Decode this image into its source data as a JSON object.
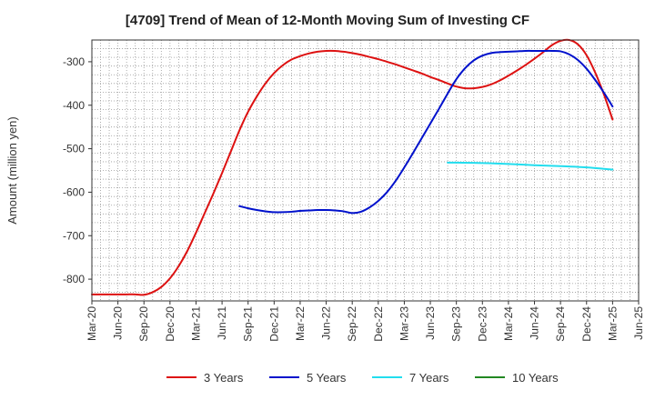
{
  "chart_data": {
    "type": "line",
    "title": "[4709]  Trend of Mean of 12-Month Moving Sum of Investing CF",
    "ylabel": "Amount (million yen)",
    "xlabel": "",
    "ylim": [
      -850,
      -250
    ],
    "yticks": [
      -800,
      -700,
      -600,
      -500,
      -400,
      -300
    ],
    "xlim": [
      "Mar-20",
      "Jun-25"
    ],
    "x_tick_labels": [
      "Mar-20",
      "Jun-20",
      "Sep-20",
      "Dec-20",
      "Mar-21",
      "Jun-21",
      "Sep-21",
      "Dec-21",
      "Mar-22",
      "Jun-22",
      "Sep-22",
      "Dec-22",
      "Mar-23",
      "Jun-23",
      "Sep-23",
      "Dec-23",
      "Mar-24",
      "Jun-24",
      "Sep-24",
      "Dec-24",
      "Mar-25",
      "Jun-25"
    ],
    "grid": true,
    "legend_position": "bottom",
    "series": [
      {
        "name": "3 Years",
        "color": "#dd1111",
        "points": [
          [
            "Mar-20",
            -835
          ],
          [
            "Apr-20",
            -835
          ],
          [
            "May-20",
            -835
          ],
          [
            "Jun-20",
            -835
          ],
          [
            "Jul-20",
            -835
          ],
          [
            "Aug-20",
            -835
          ],
          [
            "Sep-20",
            -836
          ],
          [
            "Oct-20",
            -830
          ],
          [
            "Nov-20",
            -818
          ],
          [
            "Dec-20",
            -798
          ],
          [
            "Jan-21",
            -770
          ],
          [
            "Feb-21",
            -735
          ],
          [
            "Mar-21",
            -693
          ],
          [
            "Apr-21",
            -648
          ],
          [
            "May-21",
            -603
          ],
          [
            "Jun-21",
            -556
          ],
          [
            "Jul-21",
            -507
          ],
          [
            "Aug-21",
            -458
          ],
          [
            "Sep-21",
            -415
          ],
          [
            "Oct-21",
            -380
          ],
          [
            "Nov-21",
            -350
          ],
          [
            "Dec-21",
            -326
          ],
          [
            "Jan-22",
            -308
          ],
          [
            "Feb-22",
            -295
          ],
          [
            "Mar-22",
            -287
          ],
          [
            "Apr-22",
            -281
          ],
          [
            "May-22",
            -277
          ],
          [
            "Jun-22",
            -275
          ],
          [
            "Jul-22",
            -275
          ],
          [
            "Aug-22",
            -277
          ],
          [
            "Sep-22",
            -280
          ],
          [
            "Oct-22",
            -284
          ],
          [
            "Nov-22",
            -289
          ],
          [
            "Dec-22",
            -294
          ],
          [
            "Jan-23",
            -300
          ],
          [
            "Feb-23",
            -306
          ],
          [
            "Mar-23",
            -313
          ],
          [
            "Apr-23",
            -320
          ],
          [
            "May-23",
            -327
          ],
          [
            "Jun-23",
            -335
          ],
          [
            "Jul-23",
            -342
          ],
          [
            "Aug-23",
            -350
          ],
          [
            "Sep-23",
            -357
          ],
          [
            "Oct-23",
            -361
          ],
          [
            "Nov-23",
            -361
          ],
          [
            "Dec-23",
            -358
          ],
          [
            "Jan-24",
            -352
          ],
          [
            "Feb-24",
            -343
          ],
          [
            "Mar-24",
            -332
          ],
          [
            "Apr-24",
            -320
          ],
          [
            "May-24",
            -307
          ],
          [
            "Jun-24",
            -293
          ],
          [
            "Jul-24",
            -278
          ],
          [
            "Aug-24",
            -262
          ],
          [
            "Sep-24",
            -252
          ],
          [
            "Oct-24",
            -250
          ],
          [
            "Nov-24",
            -260
          ],
          [
            "Dec-24",
            -285
          ],
          [
            "Jan-25",
            -325
          ],
          [
            "Feb-25",
            -375
          ],
          [
            "Mar-25",
            -433
          ]
        ]
      },
      {
        "name": "5 Years",
        "color": "#0011cc",
        "points": [
          [
            "Aug-21",
            -632
          ],
          [
            "Sep-21",
            -637
          ],
          [
            "Oct-21",
            -641
          ],
          [
            "Nov-21",
            -644
          ],
          [
            "Dec-21",
            -646
          ],
          [
            "Jan-22",
            -646
          ],
          [
            "Feb-22",
            -645
          ],
          [
            "Mar-22",
            -643
          ],
          [
            "Apr-22",
            -642
          ],
          [
            "May-22",
            -641
          ],
          [
            "Jun-22",
            -641
          ],
          [
            "Jul-22",
            -642
          ],
          [
            "Aug-22",
            -644
          ],
          [
            "Sep-22",
            -648
          ],
          [
            "Oct-22",
            -645
          ],
          [
            "Nov-22",
            -635
          ],
          [
            "Dec-22",
            -620
          ],
          [
            "Jan-23",
            -600
          ],
          [
            "Feb-23",
            -574
          ],
          [
            "Mar-23",
            -543
          ],
          [
            "Apr-23",
            -510
          ],
          [
            "May-23",
            -476
          ],
          [
            "Jun-23",
            -442
          ],
          [
            "Jul-23",
            -408
          ],
          [
            "Aug-23",
            -373
          ],
          [
            "Sep-23",
            -340
          ],
          [
            "Oct-23",
            -315
          ],
          [
            "Nov-23",
            -297
          ],
          [
            "Dec-23",
            -286
          ],
          [
            "Jan-24",
            -280
          ],
          [
            "Feb-24",
            -278
          ],
          [
            "Mar-24",
            -277
          ],
          [
            "Apr-24",
            -276
          ],
          [
            "May-24",
            -275
          ],
          [
            "Jun-24",
            -275
          ],
          [
            "Jul-24",
            -275
          ],
          [
            "Aug-24",
            -275
          ],
          [
            "Sep-24",
            -276
          ],
          [
            "Oct-24",
            -283
          ],
          [
            "Nov-24",
            -296
          ],
          [
            "Dec-24",
            -316
          ],
          [
            "Jan-25",
            -342
          ],
          [
            "Feb-25",
            -371
          ],
          [
            "Mar-25",
            -403
          ]
        ]
      },
      {
        "name": "7 Years",
        "color": "#22ddee",
        "points": [
          [
            "Aug-23",
            -532
          ],
          [
            "Sep-23",
            -532
          ],
          [
            "Dec-23",
            -533
          ],
          [
            "Mar-24",
            -535
          ],
          [
            "Jun-24",
            -538
          ],
          [
            "Sep-24",
            -540
          ],
          [
            "Dec-24",
            -543
          ],
          [
            "Mar-25",
            -548
          ]
        ]
      },
      {
        "name": "10 Years",
        "color": "#228822",
        "points": []
      }
    ]
  }
}
